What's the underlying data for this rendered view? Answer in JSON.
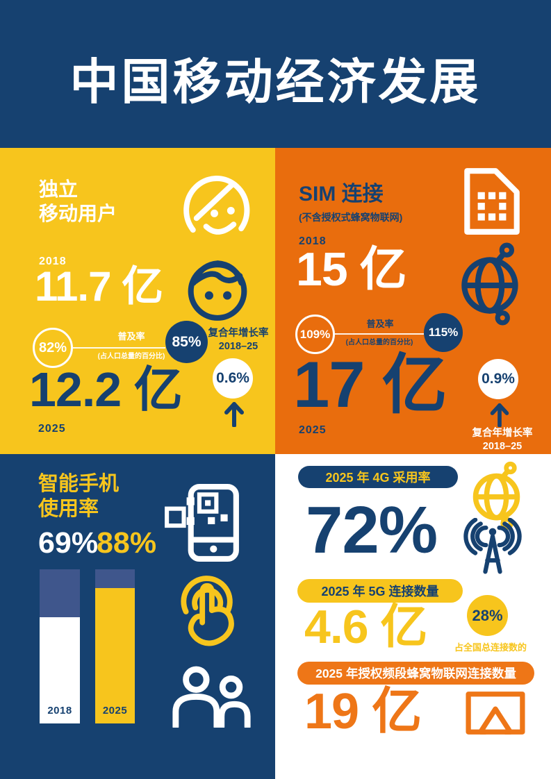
{
  "header": {
    "title": "中国移动经济发展"
  },
  "sections": {
    "users": {
      "title_line1": "独立",
      "title_line2": "移动用户",
      "year_start": "2018",
      "value_start": "11.7 亿",
      "penetration_start": "82%",
      "penetration_label": "普及率",
      "penetration_sublabel": "(占人口总量的百分比)",
      "penetration_end": "85%",
      "cagr_label_line1": "复合年增长率",
      "cagr_label_line2": "2018–25",
      "value_end": "12.2 亿",
      "cagr_value": "0.6%",
      "year_end": "2025"
    },
    "sim": {
      "title": "SIM 连接",
      "subtitle": "(不含授权式蜂窝物联网)",
      "year_start": "2018",
      "value_start": "15 亿",
      "penetration_start": "109%",
      "penetration_label": "普及率",
      "penetration_sublabel": "(占人口总量的百分比)",
      "penetration_end": "115%",
      "value_end": "17 亿",
      "cagr_value": "0.9%",
      "cagr_label_line1": "复合年增长率",
      "cagr_label_line2": "2018–25",
      "year_end": "2025"
    },
    "smartphone": {
      "title_line1": "智能手机",
      "title_line2": "使用率",
      "value_2018": "69%",
      "value_2025": "88%",
      "bar_label_2018": "2018",
      "bar_label_2025": "2025"
    },
    "forecast": {
      "adoption_4g_label": "2025 年 4G 采用率",
      "adoption_4g_value": "72%",
      "connections_5g_label": "2025 年 5G 连接数量",
      "connections_5g_value": "4.6 亿",
      "connections_5g_share": "28%",
      "connections_5g_share_label": "占全国总连接数的",
      "iot_label": "2025 年授权频段蜂窝物联网连接数量",
      "iot_value": "19 亿"
    }
  },
  "icons": {
    "woman-face-icon": "female user outline",
    "man-face-icon": "male user outline",
    "sim-card-icon": "SIM card with chip contacts",
    "globe-network-icon": "globe with connection nodes",
    "phone-qr-icon": "smartphone scanning QR code",
    "touch-gesture-icon": "finger tap with ripple circles",
    "people-icon": "two user silhouettes",
    "radio-tower-icon": "antenna mast with radio waves",
    "screen-cast-icon": "display with cast triangle",
    "arrow-up-icon": "upward growth arrow"
  },
  "colors": {
    "navy": "#164170",
    "yellow": "#F7C51D",
    "orange": "#E96D0D",
    "orange_bright": "#EE7617",
    "slate": "#3F568C",
    "white": "#FFFFFF"
  },
  "chart_data": [
    {
      "type": "table",
      "title": "独立移动用户",
      "categories": [
        "2018",
        "2025"
      ],
      "series": [
        {
          "name": "独立移动用户 (亿)",
          "values": [
            11.7,
            12.2
          ]
        },
        {
          "name": "普及率 (占人口总量的百分比, %)",
          "values": [
            82,
            85
          ]
        }
      ],
      "cagr_2018_25_pct": 0.6
    },
    {
      "type": "table",
      "title": "SIM 连接 (不含授权式蜂窝物联网)",
      "categories": [
        "2018",
        "2025"
      ],
      "series": [
        {
          "name": "SIM 连接 (亿)",
          "values": [
            15,
            17
          ]
        },
        {
          "name": "普及率 (占人口总量的百分比, %)",
          "values": [
            109,
            115
          ]
        }
      ],
      "cagr_2018_25_pct": 0.9
    },
    {
      "type": "bar",
      "title": "智能手机使用率",
      "categories": [
        "2018",
        "2025"
      ],
      "values": [
        69,
        88
      ],
      "unit": "%",
      "ylim": [
        0,
        100
      ],
      "bar_colors": [
        "#FFFFFF",
        "#F7C51D"
      ]
    },
    {
      "type": "table",
      "title": "2025 年预测",
      "rows": [
        [
          "2025 年 4G 采用率",
          "72%"
        ],
        [
          "2025 年 5G 连接数量",
          "4.6 亿 (占全国总连接数的 28%)"
        ],
        [
          "2025 年授权频段蜂窝物联网连接数量",
          "19 亿"
        ]
      ]
    }
  ]
}
